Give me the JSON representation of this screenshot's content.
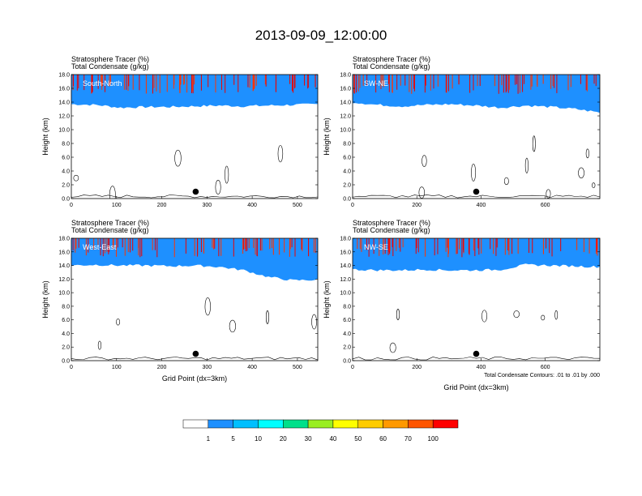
{
  "figure_title": "2013-09-09_12:00:00",
  "chart_data": [
    {
      "type": "contour-cross-section",
      "panel": "South-North",
      "label_top": "Stratosphere Tracer   (%)",
      "label_bottom": "Total Condensate   (g/kg)",
      "ylabel": "Height (km)",
      "xlabel": "",
      "xlim": [
        0,
        545
      ],
      "ylim": [
        0,
        18
      ],
      "xticks": [
        "0",
        "100",
        "200",
        "300",
        "400",
        "500"
      ],
      "xtick_values": [
        0,
        100,
        200,
        300,
        400,
        500
      ],
      "yticks": [
        "0.0",
        "2.0",
        "4.0",
        "6.0",
        "8.0",
        "10.0",
        "12.0",
        "14.0",
        "16.0",
        "18.0"
      ],
      "marker_x": 275,
      "tropopause_base_km": [
        13.7,
        13.6,
        13.2,
        13.3,
        13.3,
        13.4,
        13.5,
        13.4,
        13.5,
        13.6,
        13.7
      ],
      "note": ""
    },
    {
      "type": "contour-cross-section",
      "panel": "SW-NE",
      "label_top": "Stratosphere Tracer   (%)",
      "label_bottom": "Total Condensate   (g/kg)",
      "ylabel": "Height (km)",
      "xlabel": "",
      "xlim": [
        0,
        770
      ],
      "ylim": [
        0,
        18
      ],
      "xticks": [
        "0",
        "200",
        "400",
        "600"
      ],
      "xtick_values": [
        0,
        200,
        400,
        600
      ],
      "yticks": [
        "0.0",
        "2.0",
        "4.0",
        "6.0",
        "8.0",
        "10.0",
        "12.0",
        "14.0",
        "16.0",
        "18.0"
      ],
      "marker_x": 385,
      "tropopause_base_km": [
        14.0,
        13.6,
        13.4,
        13.6,
        13.7,
        13.5,
        13.2,
        13.5,
        13.3,
        13.0,
        12.5
      ],
      "note": ""
    },
    {
      "type": "contour-cross-section",
      "panel": "West-East",
      "label_top": "Stratosphere Tracer   (%)",
      "label_bottom": "Total Condensate   (g/kg)",
      "ylabel": "Height (km)",
      "xlabel": "Grid Point (dx=3km)",
      "xlim": [
        0,
        545
      ],
      "ylim": [
        0,
        18
      ],
      "xticks": [
        "0",
        "100",
        "200",
        "300",
        "400",
        "500"
      ],
      "xtick_values": [
        0,
        100,
        200,
        300,
        400,
        500
      ],
      "yticks": [
        "0.0",
        "2.0",
        "4.0",
        "6.0",
        "8.0",
        "10.0",
        "12.0",
        "14.0",
        "16.0",
        "18.0"
      ],
      "marker_x": 275,
      "tropopause_base_km": [
        14.0,
        14.1,
        14.0,
        14.0,
        13.9,
        14.0,
        13.8,
        13.3,
        12.3,
        11.8,
        11.9
      ],
      "note": ""
    },
    {
      "type": "contour-cross-section",
      "panel": "NW-SE",
      "label_top": "Stratosphere Tracer   (%)",
      "label_bottom": "Total Condensate   (g/kg)",
      "ylabel": "Height (km)",
      "xlabel": "Grid Point (dx=3km)",
      "xlim": [
        0,
        770
      ],
      "ylim": [
        0,
        18
      ],
      "xticks": [
        "0",
        "200",
        "400",
        "600"
      ],
      "xtick_values": [
        0,
        200,
        400,
        600
      ],
      "yticks": [
        "0.0",
        "2.0",
        "4.0",
        "6.0",
        "8.0",
        "10.0",
        "12.0",
        "14.0",
        "16.0",
        "18.0"
      ],
      "marker_x": 385,
      "tropopause_base_km": [
        13.4,
        13.3,
        13.3,
        13.4,
        13.3,
        13.3,
        13.4,
        14.1,
        14.0,
        13.9,
        13.8
      ],
      "note": "Total Condensate Contours: .01 to .01 by .000"
    }
  ],
  "colorbar": {
    "labels": [
      "1",
      "5",
      "10",
      "20",
      "30",
      "40",
      "50",
      "60",
      "70",
      "100"
    ],
    "colors": [
      "#ffffff",
      "#1e90ff",
      "#00bfff",
      "#00ffff",
      "#00e08a",
      "#00dd00",
      "#99ee22",
      "#ffff00",
      "#ffcc00",
      "#ff9900",
      "#ff5500",
      "#ff0000"
    ]
  }
}
